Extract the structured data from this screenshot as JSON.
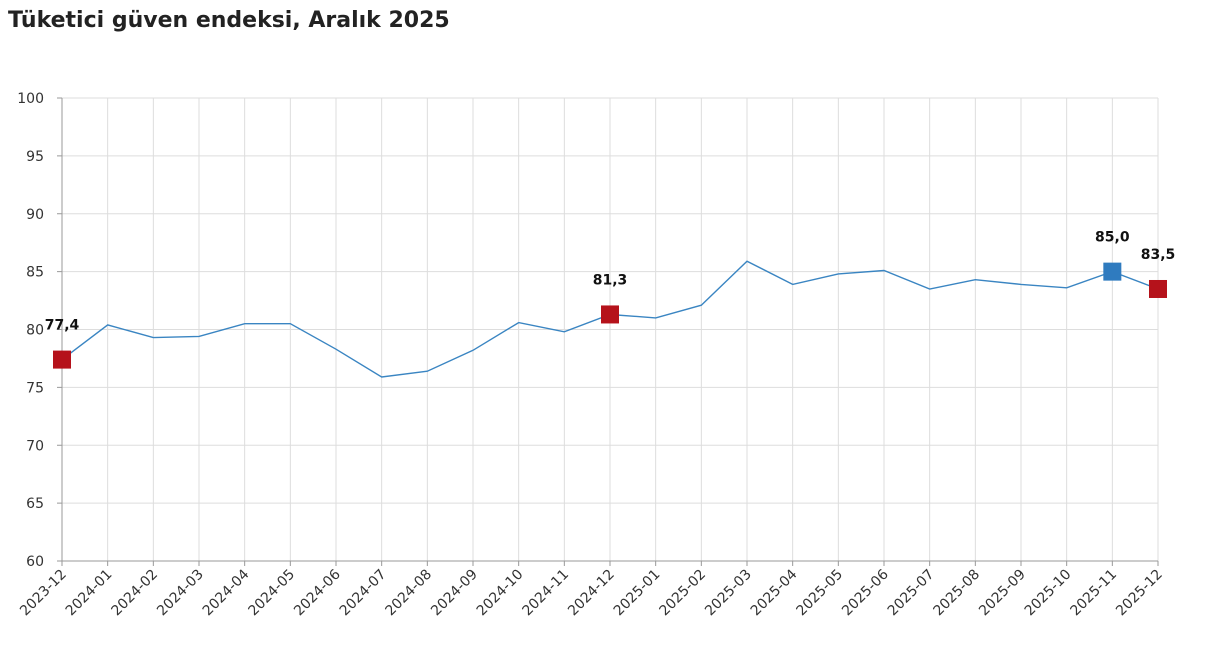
{
  "title": "Tüketici güven endeksi, Aralık 2025",
  "colors": {
    "line": "#3a85c2",
    "marker_red": "#b5121b",
    "marker_blue": "#2f7bbf",
    "grid": "#dddddd",
    "axis": "#999999"
  },
  "chart_data": {
    "type": "line",
    "title": "Tüketici güven endeksi, Aralık 2025",
    "xlabel": "",
    "ylabel": "",
    "ylim": [
      60,
      100
    ],
    "yticks": [
      60,
      65,
      70,
      75,
      80,
      85,
      90,
      95,
      100
    ],
    "grid": true,
    "categories": [
      "2023-12",
      "2024-01",
      "2024-02",
      "2024-03",
      "2024-04",
      "2024-05",
      "2024-06",
      "2024-07",
      "2024-08",
      "2024-09",
      "2024-10",
      "2024-11",
      "2024-12",
      "2025-01",
      "2025-02",
      "2025-03",
      "2025-04",
      "2025-05",
      "2025-06",
      "2025-07",
      "2025-08",
      "2025-09",
      "2025-10",
      "2025-11",
      "2025-12"
    ],
    "series": [
      {
        "values": [
          77.4,
          80.4,
          79.3,
          79.4,
          80.5,
          80.5,
          78.3,
          75.9,
          76.4,
          78.2,
          80.6,
          79.8,
          81.3,
          81.0,
          82.1,
          85.9,
          83.9,
          84.8,
          85.1,
          83.5,
          84.3,
          83.9,
          83.6,
          85.0,
          83.5
        ]
      }
    ],
    "highlights": [
      {
        "index": 0,
        "label": "77,4",
        "color": "red"
      },
      {
        "index": 12,
        "label": "81,3",
        "color": "red"
      },
      {
        "index": 23,
        "label": "85,0",
        "color": "blue"
      },
      {
        "index": 24,
        "label": "83,5",
        "color": "red"
      }
    ]
  }
}
